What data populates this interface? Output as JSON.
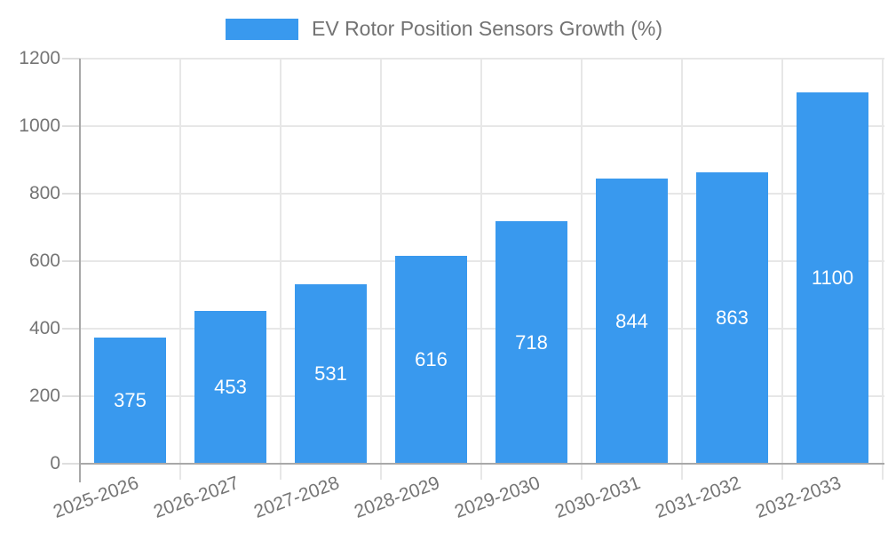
{
  "chart_data": {
    "type": "bar",
    "title": "EV Rotor Position Sensors Growth (%)",
    "legend_entries": [
      "EV Rotor Position Sensors Growth (%)"
    ],
    "legend_position": "top-center",
    "categories": [
      "2025-2026",
      "2026-2027",
      "2027-2028",
      "2028-2029",
      "2029-2030",
      "2030-2031",
      "2031-2032",
      "2032-2033"
    ],
    "values": [
      375,
      453,
      531,
      616,
      718,
      844,
      863,
      1100
    ],
    "value_labels": [
      "375",
      "453",
      "531",
      "616",
      "718",
      "844",
      "863",
      "1100"
    ],
    "yticks": [
      0,
      200,
      400,
      600,
      800,
      1000,
      1200
    ],
    "ylim": [
      0,
      1200
    ],
    "xlabel": "",
    "ylabel": "",
    "grid": true,
    "x_tick_rotation_deg": 20,
    "bar_color": "#3999EE",
    "value_label_color": "#FFFFFF"
  },
  "colors": {
    "background": "#FFFFFF",
    "gridline": "#E7E7E7",
    "axis_line": "#A8A8A8",
    "tick_mark": "#DEDEDE",
    "axis_label": "#757575",
    "title": "#737373"
  }
}
